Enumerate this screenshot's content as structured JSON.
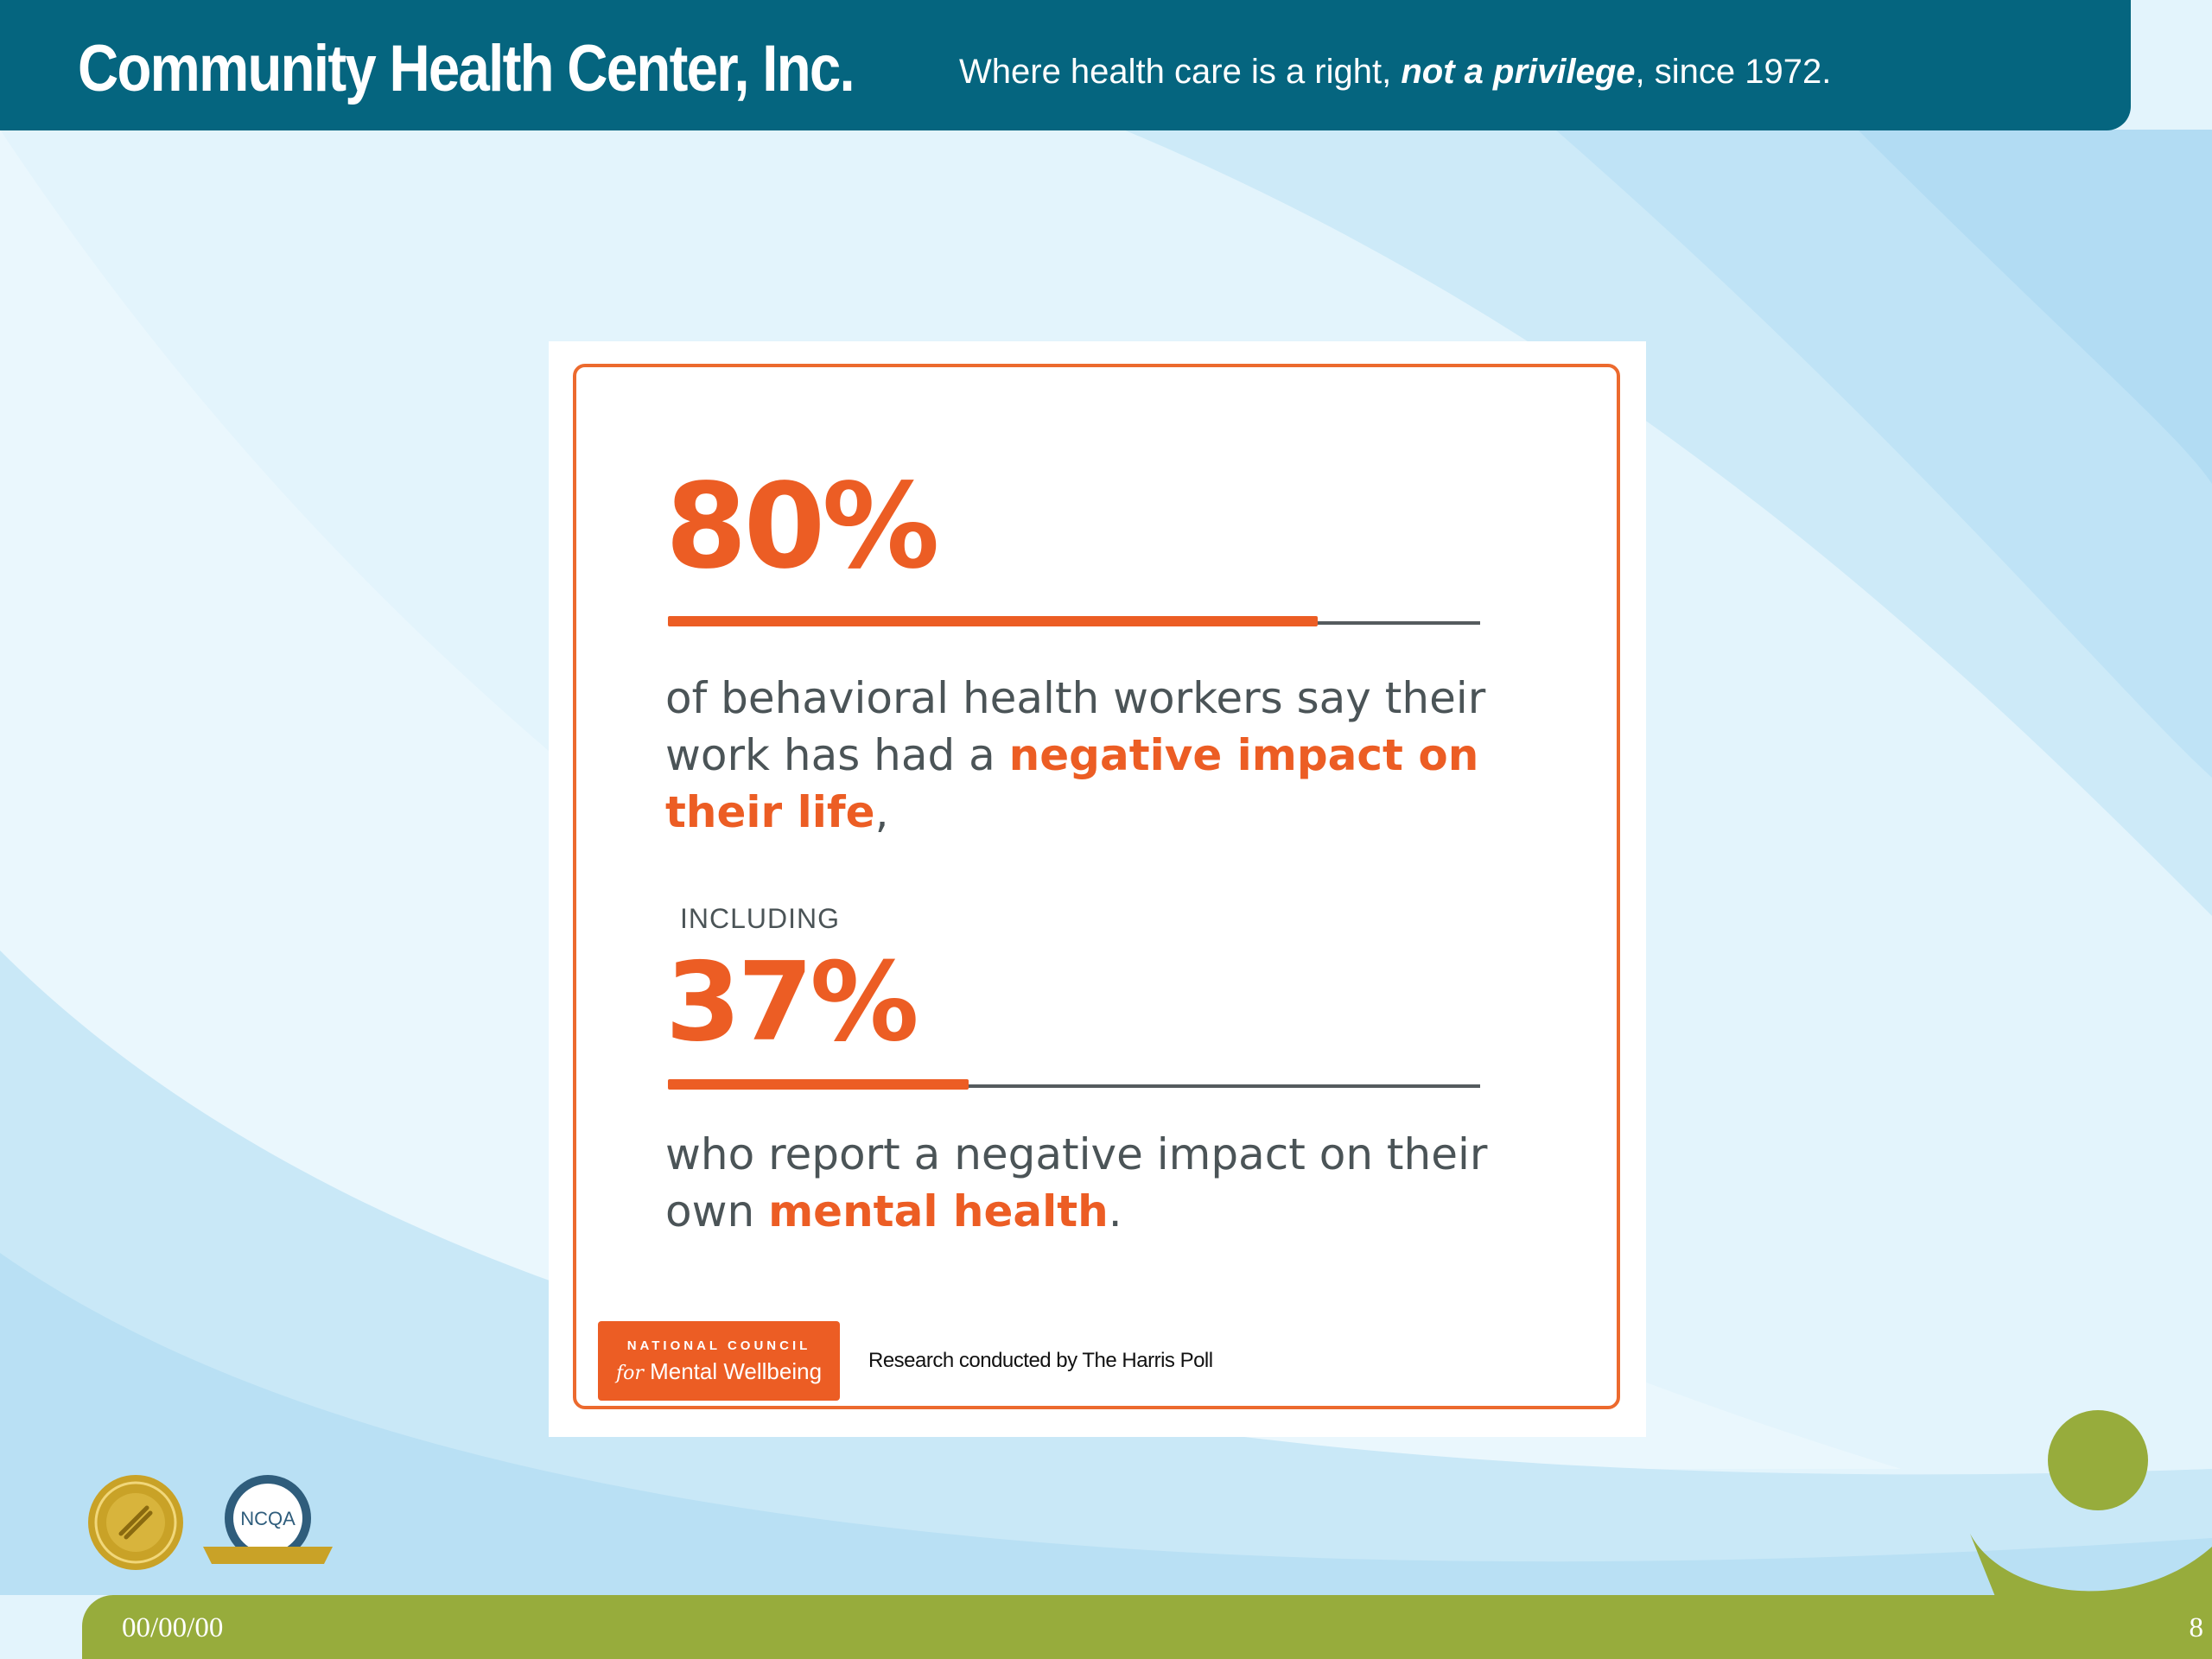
{
  "header": {
    "brand": "Community Health Center, Inc.",
    "tagline_pre": "Where health care is a right, ",
    "tagline_em": "not a privilege",
    "tagline_post": ", since 1972."
  },
  "card": {
    "stat1": {
      "value": "80%",
      "fraction": 0.8,
      "text_pre": "of behavioral health workers say their work has had a ",
      "text_highlight": "negative impact on their life",
      "text_post": ","
    },
    "including": "INCLUDING",
    "stat2": {
      "value": "37%",
      "fraction": 0.37,
      "text_pre": "who report a negative impact on their own ",
      "text_highlight": "mental health",
      "text_post": "."
    },
    "logo": {
      "top": "NATIONAL COUNCIL",
      "for": "for",
      "bottom": "Mental Wellbeing"
    },
    "research": "Research conducted by The Harris Poll"
  },
  "seals": {
    "ncqa_label": "NCQA"
  },
  "footer": {
    "date": "00/00/00",
    "page": "8"
  },
  "colors": {
    "header": "#05657f",
    "accent_orange": "#ec5d24",
    "footer_green": "#97ac3c",
    "text_gray": "#4b5457"
  },
  "icons": [
    "community-figure-logo-icon",
    "joint-commission-seal-icon",
    "ncqa-seal-icon"
  ]
}
